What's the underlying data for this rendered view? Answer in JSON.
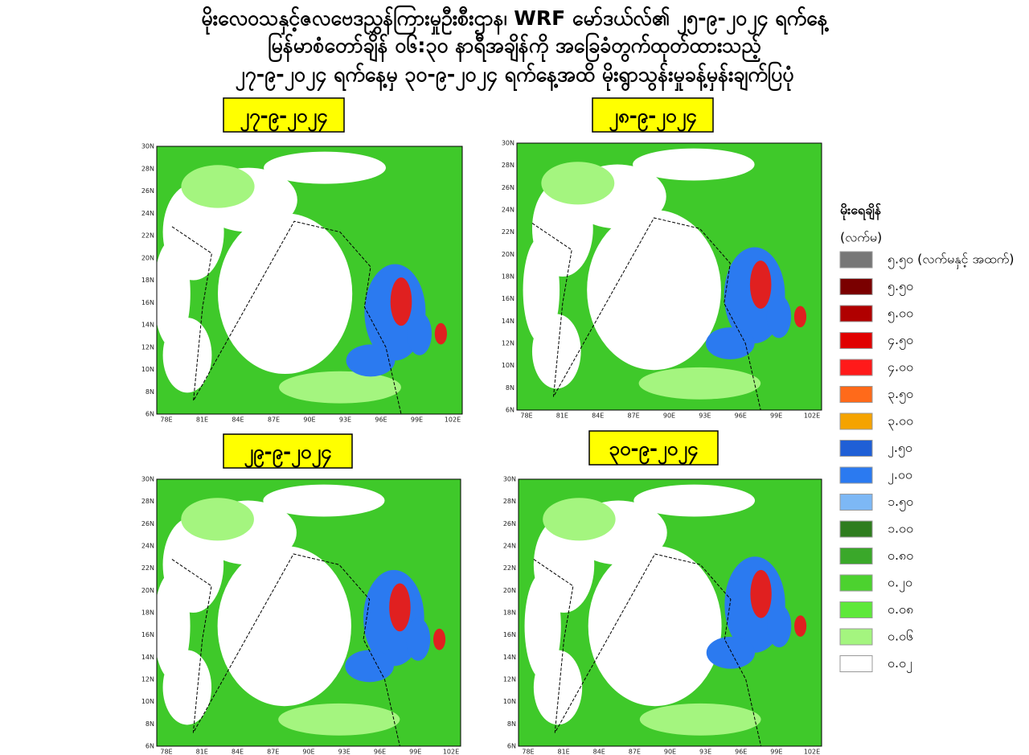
{
  "header": {
    "title_lines": [
      "မိုးလေဝသနှင့်ဇလဗေဒညွှန်ကြားမှုဦးစီးဌာန၊ WRF မော်ဒယ်လ်၏ ၂၅-၉-၂၀၂၄ ရက်နေ့",
      "မြန်မာစံတော်ချိန် ၀၆:၃၀ နာရီအချိန်ကို အခြေခံတွက်ထုတ်ထားသည့်",
      "၂၇-၉-၂၀၂၄ ရက်နေ့မှ ၃၀-၉-၂၀၂၄ ရက်နေ့အထိ မိုးရွာသွန်းမှုခန့်မှန်းချက်ပြပုံ"
    ]
  },
  "panels": [
    {
      "date": "၂၇-၉-၂၀၂၄"
    },
    {
      "date": "၂၈-၉-၂၀၂၄"
    },
    {
      "date": "၂၉-၉-၂၀၂၄"
    },
    {
      "date": "၃၀-၉-၂၀၂၄"
    }
  ],
  "map_axes": {
    "lat_labels": [
      "30N",
      "28N",
      "26N",
      "24N",
      "22N",
      "20N",
      "18N",
      "16N",
      "14N",
      "12N",
      "10N",
      "8N",
      "6N"
    ],
    "lon_labels": [
      "78E",
      "81E",
      "84E",
      "87E",
      "90E",
      "93E",
      "96E",
      "99E",
      "102E"
    ]
  },
  "legend": {
    "title": "မိုးရေချိန်",
    "unit": "(လက်မ)",
    "items": [
      {
        "label": "၅.၅၀ (လက်မနှင့် အထက်)",
        "color": "#777777"
      },
      {
        "label": "၅.၅၀",
        "color": "#7a0000"
      },
      {
        "label": "၅.၀၀",
        "color": "#b00000"
      },
      {
        "label": "၄.၅၀",
        "color": "#e00000"
      },
      {
        "label": "၄.၀၀",
        "color": "#ff1a1a"
      },
      {
        "label": "၃.၅၀",
        "color": "#ff6a1a"
      },
      {
        "label": "၃.၀၀",
        "color": "#f5a300"
      },
      {
        "label": "၂.၅၀",
        "color": "#1f5fd6"
      },
      {
        "label": "၂.၀၀",
        "color": "#2b7af0"
      },
      {
        "label": "၁.၅၀",
        "color": "#7db8f5"
      },
      {
        "label": "၁.၀၀",
        "color": "#2e7d1e"
      },
      {
        "label": "၀.၈၀",
        "color": "#3aa82a"
      },
      {
        "label": "၀.၂၀",
        "color": "#4cd22f"
      },
      {
        "label": "၀.၀၈",
        "color": "#5ee83a"
      },
      {
        "label": "၀.၀၆",
        "color": "#a4f57f"
      },
      {
        "label": "၀.၀၂",
        "color": "#ffffff"
      }
    ]
  }
}
